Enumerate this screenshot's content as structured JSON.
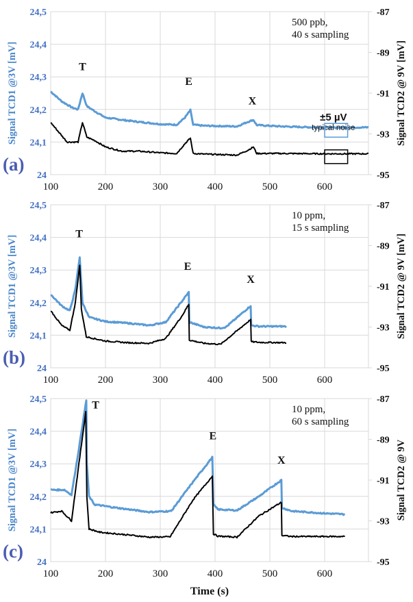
{
  "chart_data": [
    {
      "type": "line",
      "panel_label": "(a)",
      "annotation": [
        "500 ppb,",
        "40 s sampling"
      ],
      "xlabel": "",
      "ylabel_left": "Signal TCD1 @3V [mV]",
      "ylabel_right": "Signal TCD2 @ 9V [mV]",
      "xlim": [
        100,
        680
      ],
      "ylim_left": [
        24,
        24.5
      ],
      "ylim_right": [
        -95,
        -87
      ],
      "x_ticks": [
        "100",
        "200",
        "300",
        "400",
        "500",
        "600"
      ],
      "x_tick_values": [
        100,
        200,
        300,
        400,
        500,
        600
      ],
      "y_ticks_left": [
        "24",
        "24,1",
        "24,2",
        "24,3",
        "24,4",
        "24,5"
      ],
      "y_ticks_right": [
        "-95",
        "-93",
        "-91",
        "-89",
        "-87"
      ],
      "grid": true,
      "peak_labels": [
        {
          "text": "T",
          "x": 158,
          "y": 24.32
        },
        {
          "text": "E",
          "x": 352,
          "y": 24.275
        },
        {
          "text": "X",
          "x": 468,
          "y": 24.215
        }
      ],
      "noise_annotation": {
        "value": "±5 µV",
        "caption": "typical noise",
        "x_range": [
          600,
          642
        ]
      },
      "series": [
        {
          "name": "TCD1 @3V",
          "axis": "left",
          "color": "#5b9bd5",
          "x": [
            100,
            120,
            140,
            150,
            158,
            166,
            180,
            200,
            230,
            260,
            300,
            330,
            345,
            355,
            360,
            380,
            440,
            460,
            470,
            476,
            520,
            600,
            680
          ],
          "y": [
            24.255,
            24.225,
            24.205,
            24.2,
            24.25,
            24.21,
            24.195,
            24.175,
            24.168,
            24.162,
            24.155,
            24.153,
            24.175,
            24.198,
            24.153,
            24.15,
            24.148,
            24.162,
            24.168,
            24.152,
            24.148,
            24.144,
            24.145
          ]
        },
        {
          "name": "TCD2 @9V",
          "axis": "right",
          "color": "#000000",
          "x": [
            100,
            120,
            130,
            140,
            150,
            158,
            166,
            180,
            200,
            230,
            260,
            300,
            330,
            345,
            355,
            360,
            380,
            440,
            460,
            470,
            476,
            520,
            600,
            680
          ],
          "y": [
            24.16,
            24.12,
            24.1,
            24.1,
            24.1,
            24.16,
            24.115,
            24.105,
            24.085,
            24.072,
            24.072,
            24.067,
            24.065,
            24.095,
            24.112,
            24.065,
            24.063,
            24.06,
            24.075,
            24.085,
            24.065,
            24.065,
            24.064,
            24.064
          ]
        }
      ]
    },
    {
      "type": "line",
      "panel_label": "(b)",
      "annotation": [
        "10 ppm,",
        "15 s sampling"
      ],
      "xlabel": "",
      "ylabel_left": "Signal TCD1 @3V [mV]",
      "ylabel_right": "Signal TCD2 @ 9V [mV]",
      "xlim": [
        100,
        680
      ],
      "ylim_left": [
        24,
        24.5
      ],
      "ylim_right": [
        -95,
        -87
      ],
      "x_ticks": [
        "100",
        "200",
        "300",
        "400",
        "500",
        "600"
      ],
      "x_tick_values": [
        100,
        200,
        300,
        400,
        500,
        600
      ],
      "y_ticks_left": [
        "24",
        "24,1",
        "24,2",
        "24,3",
        "24,4",
        "24,5"
      ],
      "y_ticks_right": [
        "-95",
        "-93",
        "-91",
        "-89",
        "-87"
      ],
      "grid": true,
      "peak_labels": [
        {
          "text": "T",
          "x": 152,
          "y": 24.4
        },
        {
          "text": "E",
          "x": 350,
          "y": 24.3
        },
        {
          "text": "X",
          "x": 465,
          "y": 24.26
        }
      ],
      "series": [
        {
          "name": "TCD1 @3V",
          "axis": "left",
          "color": "#5b9bd5",
          "x": [
            100,
            120,
            135,
            145,
            153,
            158,
            170,
            200,
            240,
            280,
            310,
            340,
            352,
            353,
            380,
            410,
            420,
            465,
            466,
            480,
            530
          ],
          "y": [
            24.225,
            24.19,
            24.175,
            24.24,
            24.34,
            24.2,
            24.155,
            24.142,
            24.137,
            24.13,
            24.14,
            24.205,
            24.232,
            24.14,
            24.125,
            24.122,
            24.125,
            24.19,
            24.13,
            24.127,
            24.127
          ]
        },
        {
          "name": "TCD2 @9V",
          "axis": "right",
          "color": "#000000",
          "x": [
            100,
            120,
            135,
            145,
            153,
            156,
            165,
            200,
            240,
            280,
            310,
            340,
            352,
            353,
            380,
            410,
            465,
            466,
            480,
            530
          ],
          "y": [
            24.175,
            24.13,
            24.115,
            24.2,
            24.315,
            24.18,
            24.095,
            24.082,
            24.077,
            24.075,
            24.09,
            24.16,
            24.195,
            24.085,
            24.075,
            24.072,
            24.148,
            24.08,
            24.078,
            24.077
          ]
        }
      ]
    },
    {
      "type": "line",
      "panel_label": "(c)",
      "annotation": [
        "10 ppm,",
        "60 s sampling"
      ],
      "xlabel": "Time (s)",
      "ylabel_left": "Signal TCD1 @3V [mV]",
      "ylabel_right": "Signal TCD2 @ 9V",
      "xlim": [
        100,
        680
      ],
      "ylim_left": [
        24,
        24.5
      ],
      "ylim_right": [
        -95,
        -87
      ],
      "x_ticks": [
        "100",
        "200",
        "300",
        "400",
        "500",
        "600"
      ],
      "x_tick_values": [
        100,
        200,
        300,
        400,
        500,
        600
      ],
      "y_ticks_left": [
        "24",
        "24,1",
        "24,2",
        "24,3",
        "24,4",
        "24,5"
      ],
      "y_ticks_right": [
        "-95",
        "-93",
        "-91",
        "-89",
        "-87"
      ],
      "grid": true,
      "peak_labels": [
        {
          "text": "T",
          "x": 182,
          "y": 24.47
        },
        {
          "text": "E",
          "x": 396,
          "y": 24.375
        },
        {
          "text": "X",
          "x": 521,
          "y": 24.3
        }
      ],
      "series": [
        {
          "name": "TCD1 @3V",
          "axis": "left",
          "color": "#5b9bd5",
          "x": [
            100,
            125,
            138,
            150,
            165,
            166,
            170,
            180,
            220,
            280,
            320,
            360,
            395,
            397,
            405,
            440,
            480,
            521,
            522,
            540,
            600,
            637
          ],
          "y": [
            24.22,
            24.22,
            24.205,
            24.33,
            24.495,
            24.3,
            24.2,
            24.175,
            24.165,
            24.152,
            24.155,
            24.245,
            24.32,
            24.175,
            24.16,
            24.157,
            24.2,
            24.25,
            24.165,
            24.155,
            24.148,
            24.145
          ]
        },
        {
          "name": "TCD2 @9V",
          "axis": "right",
          "color": "#000000",
          "x": [
            100,
            120,
            138,
            150,
            164,
            166,
            170,
            190,
            240,
            280,
            318,
            360,
            395,
            397,
            405,
            440,
            480,
            521,
            522,
            540,
            637
          ],
          "y": [
            24.15,
            24.155,
            24.125,
            24.28,
            24.46,
            24.2,
            24.1,
            24.09,
            24.082,
            24.075,
            24.076,
            24.19,
            24.262,
            24.085,
            24.078,
            24.075,
            24.14,
            24.182,
            24.08,
            24.077,
            24.077
          ]
        }
      ]
    }
  ]
}
